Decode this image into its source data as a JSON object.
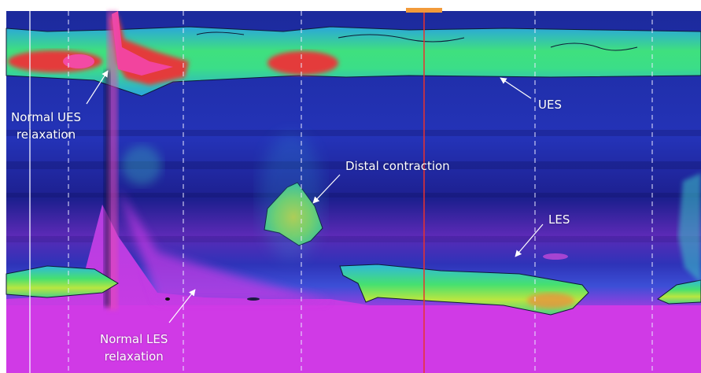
{
  "annotations": {
    "ues": "UES",
    "les": "LES",
    "distal_contraction": "Distal contraction",
    "normal_ues_relaxation_line1": "Normal UES",
    "normal_ues_relaxation_line2": "relaxation",
    "normal_les_relaxation_line1": "Normal LES",
    "normal_les_relaxation_line2": "relaxation"
  },
  "colors": {
    "deep_blue": "#1b1d8c",
    "blue": "#2c3fd0",
    "cyan": "#35c8e0",
    "green": "#35e07a",
    "yellow": "#d8e838",
    "red": "#e42a2a",
    "pink": "#f23aa6",
    "magenta": "#cf2ee6",
    "marker_red": "#e8322e",
    "marker_orange": "#f29a3a"
  },
  "icons": {
    "arrows": "thin-white-pointer-arrow"
  }
}
